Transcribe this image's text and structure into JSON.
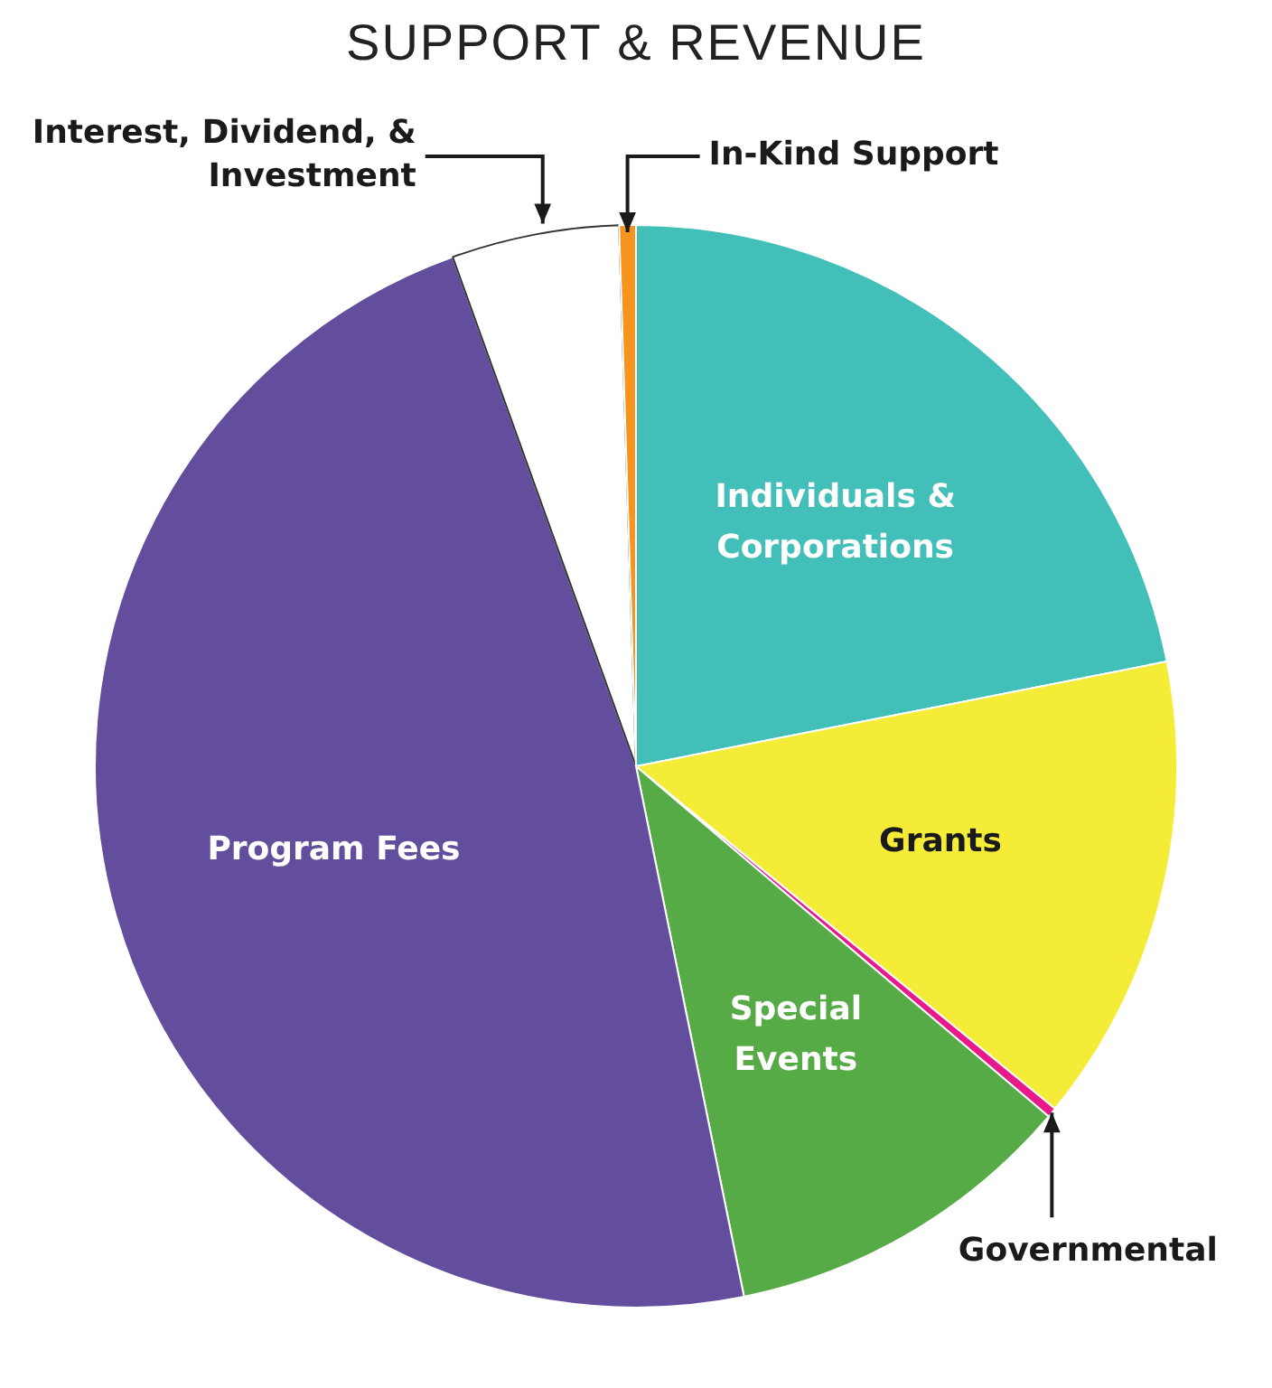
{
  "chart_data": {
    "type": "pie",
    "title": "SUPPORT & REVENUE",
    "categories": [
      "Individuals & Corporations",
      "Grants",
      "Governmental",
      "Special Events",
      "Program Fees",
      "Interest, Dividend, & Investment",
      "In-Kind Support"
    ],
    "values": [
      21.9,
      14.0,
      0.3,
      10.6,
      47.7,
      5.0,
      0.5
    ],
    "colors": [
      "#41bfb8",
      "#f5ec38",
      "#e8198b",
      "#57ab47",
      "#634e9d",
      "#ffffff",
      "#f7941d"
    ],
    "legend": false
  }
}
